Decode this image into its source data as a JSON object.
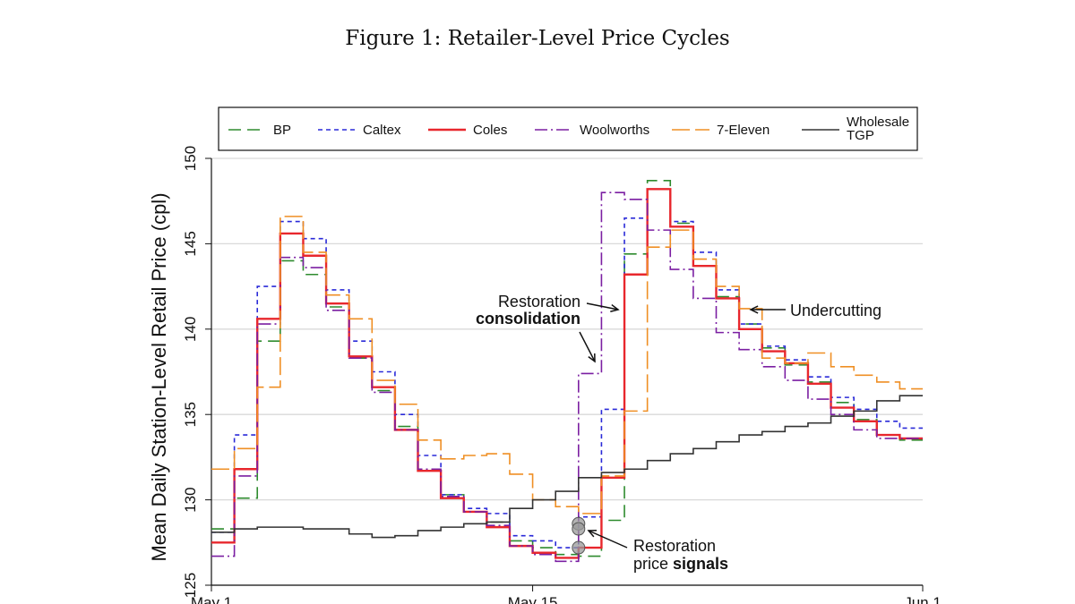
{
  "figure": {
    "title": "Figure 1: Retailer-Level Price Cycles"
  },
  "chart_data": {
    "type": "line",
    "step": true,
    "ylabel": "Mean Daily Station-Level Retail Price (cpl)",
    "ylim": [
      125,
      150
    ],
    "yticks": [
      125,
      130,
      135,
      140,
      145,
      150
    ],
    "xlim": [
      0,
      31
    ],
    "xticks": [
      {
        "value": 0,
        "label": "May 1"
      },
      {
        "value": 14,
        "label": "May 15"
      },
      {
        "value": 31,
        "label": "Jun 1"
      }
    ],
    "grid": true,
    "legend_position": "top",
    "series": [
      {
        "name": "BP",
        "color": "#2e8b2e",
        "dash": "14 7",
        "values": [
          128.3,
          130.1,
          139.3,
          144.0,
          143.2,
          141.3,
          138.3,
          136.4,
          134.3,
          131.7,
          130.3,
          129.3,
          128.7,
          127.6,
          127.2,
          126.8,
          126.7,
          128.8,
          144.4,
          148.7,
          146.2,
          143.7,
          141.9,
          140.3,
          138.9,
          137.9,
          136.9,
          135.7,
          134.7,
          133.8,
          133.5
        ]
      },
      {
        "name": "Caltex",
        "color": "#2a2ad8",
        "dash": "5 4",
        "values": [
          128.1,
          133.8,
          142.5,
          146.3,
          145.3,
          142.3,
          139.3,
          137.5,
          135.0,
          132.6,
          130.3,
          129.5,
          129.2,
          127.9,
          127.6,
          127.2,
          129.0,
          135.3,
          146.5,
          148.2,
          146.3,
          144.5,
          142.3,
          140.3,
          139.0,
          138.2,
          137.2,
          136.0,
          135.3,
          134.6,
          134.2
        ]
      },
      {
        "name": "Coles",
        "color": "#e8272d",
        "dash": "",
        "values": [
          127.5,
          131.8,
          140.6,
          145.6,
          144.3,
          141.5,
          138.4,
          136.6,
          134.1,
          131.7,
          130.1,
          129.3,
          128.4,
          127.3,
          126.9,
          126.6,
          127.2,
          131.3,
          143.2,
          148.2,
          146.0,
          143.7,
          141.8,
          140.0,
          138.7,
          138.0,
          136.8,
          135.4,
          134.6,
          133.8,
          133.6
        ]
      },
      {
        "name": "Woolworths",
        "color": "#7b1fa2",
        "dash": "14 4 2 4",
        "values": [
          126.7,
          131.4,
          140.3,
          144.2,
          143.6,
          141.1,
          138.3,
          136.3,
          134.1,
          131.8,
          130.2,
          129.3,
          128.5,
          127.3,
          126.8,
          126.4,
          137.4,
          148.0,
          147.6,
          145.8,
          143.5,
          141.8,
          139.8,
          138.8,
          137.8,
          137.0,
          135.9,
          135.0,
          134.1,
          133.6,
          133.6
        ]
      },
      {
        "name": "7-Eleven",
        "color": "#ef8f24",
        "dash": "20 6",
        "values": [
          131.8,
          133.0,
          136.6,
          146.6,
          144.5,
          142.0,
          140.6,
          137.0,
          135.6,
          133.5,
          132.4,
          132.6,
          132.7,
          131.5,
          130.0,
          129.6,
          129.2,
          131.4,
          135.2,
          144.8,
          145.8,
          144.1,
          142.5,
          141.2,
          138.3,
          138.0,
          138.6,
          137.8,
          137.3,
          136.9,
          136.5
        ]
      },
      {
        "name": "Wholesale TGP",
        "color": "#333333",
        "dash": "",
        "values": [
          128.1,
          128.3,
          128.4,
          128.4,
          128.3,
          128.3,
          128.0,
          127.8,
          127.9,
          128.2,
          128.4,
          128.6,
          128.7,
          129.5,
          130.0,
          130.5,
          131.3,
          131.6,
          131.8,
          132.3,
          132.7,
          133.0,
          133.4,
          133.8,
          134.0,
          134.3,
          134.5,
          134.9,
          135.2,
          135.8,
          136.1
        ]
      }
    ],
    "annotations": [
      {
        "id": "restoration-consolidation",
        "line1": "Restoration",
        "line2": "consolidation"
      },
      {
        "id": "undercutting",
        "line1": "Undercutting"
      },
      {
        "id": "restoration-signals",
        "line1": "Restoration",
        "line2_plain": "price ",
        "line2_bold": "signals"
      }
    ]
  }
}
